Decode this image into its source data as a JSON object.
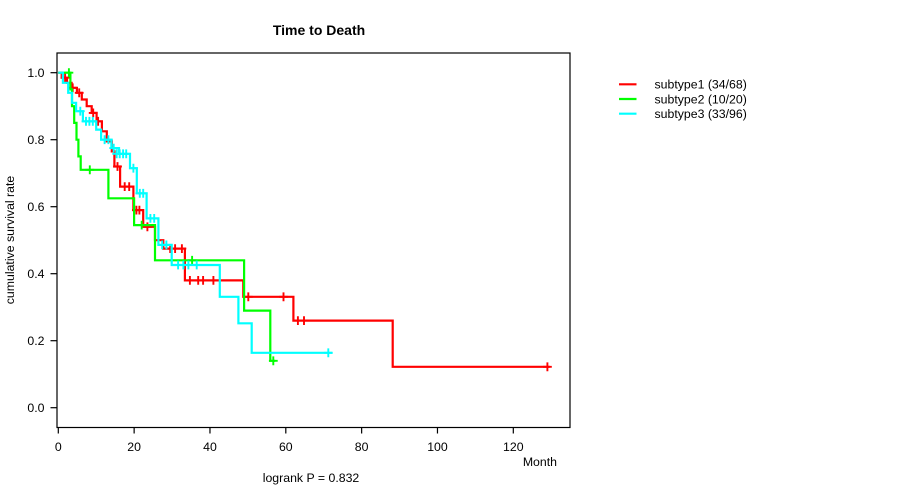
{
  "title": "Time to Death",
  "x_axis": {
    "label": "Month",
    "tick_labels": [
      "0",
      "20",
      "40",
      "60",
      "80",
      "100",
      "120"
    ]
  },
  "y_axis": {
    "label": "cumulative survival rate",
    "tick_labels": [
      "0.0",
      "0.2",
      "0.4",
      "0.6",
      "0.8",
      "1.0"
    ]
  },
  "footer": {
    "logrank_text": "logrank P = 0.832"
  },
  "legend": {
    "items": [
      {
        "label": "subtype1 (34/68)",
        "color": "#ff0000"
      },
      {
        "label": "subtype2 (10/20)",
        "color": "#00ff00"
      },
      {
        "label": "subtype3 (33/96)",
        "color": "#00ffff"
      }
    ]
  },
  "chart_data": {
    "type": "line",
    "variant": "kaplan-meier-step",
    "title": "Time to Death",
    "xlabel": "Month",
    "ylabel": "cumulative survival rate",
    "xlim": [
      0,
      135
    ],
    "ylim": [
      0,
      1.04
    ],
    "x_ticks": [
      0,
      20,
      40,
      60,
      80,
      100,
      120
    ],
    "y_ticks": [
      0.0,
      0.2,
      0.4,
      0.6,
      0.8,
      1.0
    ],
    "grid": false,
    "legend_position": "right",
    "annotation": "logrank P = 0.832",
    "series": [
      {
        "name": "subtype1 (34/68)",
        "color": "#ff0000",
        "steps": [
          [
            0,
            1.0
          ],
          [
            0.9,
            0.985
          ],
          [
            2.3,
            0.97
          ],
          [
            3.5,
            0.955
          ],
          [
            4.9,
            0.94
          ],
          [
            6.2,
            0.92
          ],
          [
            7.5,
            0.9
          ],
          [
            8.8,
            0.88
          ],
          [
            10.1,
            0.855
          ],
          [
            11.5,
            0.825
          ],
          [
            12.8,
            0.795
          ],
          [
            14.1,
            0.765
          ],
          [
            14.8,
            0.72
          ],
          [
            16.3,
            0.66
          ],
          [
            19.8,
            0.59
          ],
          [
            22.4,
            0.54
          ],
          [
            25.5,
            0.5
          ],
          [
            27.7,
            0.475
          ],
          [
            33.4,
            0.38
          ],
          [
            48.8,
            0.331
          ],
          [
            62,
            0.26
          ],
          [
            88.2,
            0.122
          ]
        ],
        "end": 129.6,
        "censors": [
          [
            1.8,
            0.985
          ],
          [
            3.8,
            0.955
          ],
          [
            5.5,
            0.94
          ],
          [
            9.2,
            0.88
          ],
          [
            10.5,
            0.855
          ],
          [
            15.6,
            0.72
          ],
          [
            17.5,
            0.66
          ],
          [
            18.7,
            0.66
          ],
          [
            20.6,
            0.59
          ],
          [
            21.4,
            0.59
          ],
          [
            23.5,
            0.54
          ],
          [
            29.5,
            0.475
          ],
          [
            30.8,
            0.475
          ],
          [
            32.6,
            0.475
          ],
          [
            34.7,
            0.38
          ],
          [
            36.9,
            0.38
          ],
          [
            38.2,
            0.38
          ],
          [
            40.9,
            0.38
          ],
          [
            50.1,
            0.331
          ],
          [
            59.4,
            0.331
          ],
          [
            63.2,
            0.26
          ],
          [
            64.8,
            0.26
          ],
          [
            129,
            0.122
          ]
        ]
      },
      {
        "name": "subtype2 (10/20)",
        "color": "#00ff00",
        "steps": [
          [
            0,
            1.0
          ],
          [
            3.2,
            0.95
          ],
          [
            3.6,
            0.9
          ],
          [
            4.2,
            0.85
          ],
          [
            4.8,
            0.8
          ],
          [
            5.3,
            0.75
          ],
          [
            5.9,
            0.71
          ],
          [
            13.2,
            0.625
          ],
          [
            20.0,
            0.545
          ],
          [
            25.5,
            0.44
          ],
          [
            49.0,
            0.29
          ],
          [
            55.9,
            0.14
          ]
        ],
        "end": 57.2,
        "censors": [
          [
            2.8,
            1.0
          ],
          [
            8.3,
            0.71
          ],
          [
            22.0,
            0.545
          ],
          [
            35.3,
            0.44
          ],
          [
            56.7,
            0.14
          ]
        ]
      },
      {
        "name": "subtype3 (33/96)",
        "color": "#00ffff",
        "steps": [
          [
            0,
            1.0
          ],
          [
            1.2,
            0.97
          ],
          [
            2.6,
            0.94
          ],
          [
            3.6,
            0.91
          ],
          [
            4.7,
            0.885
          ],
          [
            6.5,
            0.855
          ],
          [
            10.0,
            0.83
          ],
          [
            11.3,
            0.8
          ],
          [
            14.0,
            0.775
          ],
          [
            16.0,
            0.758
          ],
          [
            18.9,
            0.715
          ],
          [
            20.7,
            0.64
          ],
          [
            23.3,
            0.565
          ],
          [
            26.4,
            0.486
          ],
          [
            29.9,
            0.426
          ],
          [
            42.6,
            0.331
          ],
          [
            47.5,
            0.252
          ],
          [
            51.0,
            0.164
          ]
        ],
        "end": 72.3,
        "censors": [
          [
            5.8,
            0.885
          ],
          [
            7.3,
            0.855
          ],
          [
            8.2,
            0.855
          ],
          [
            9.1,
            0.855
          ],
          [
            12.2,
            0.8
          ],
          [
            13.2,
            0.8
          ],
          [
            14.6,
            0.775
          ],
          [
            15.4,
            0.758
          ],
          [
            16.2,
            0.758
          ],
          [
            17.1,
            0.758
          ],
          [
            17.9,
            0.758
          ],
          [
            19.8,
            0.715
          ],
          [
            21.5,
            0.64
          ],
          [
            22.4,
            0.64
          ],
          [
            24.3,
            0.565
          ],
          [
            25.3,
            0.565
          ],
          [
            27.4,
            0.486
          ],
          [
            28.5,
            0.486
          ],
          [
            31.6,
            0.426
          ],
          [
            33.0,
            0.426
          ],
          [
            34.3,
            0.426
          ],
          [
            36.5,
            0.426
          ],
          [
            71.2,
            0.164
          ]
        ]
      }
    ]
  }
}
